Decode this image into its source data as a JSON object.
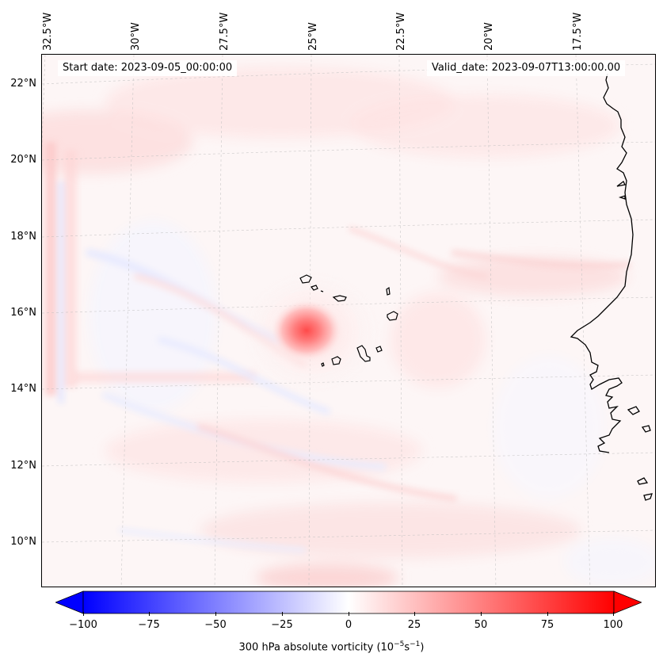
{
  "map": {
    "start_date_text": "Start date: 2023-09-05_00:00:00",
    "valid_date_text": "Valid_date: 2023-09-07T13:00:00.00",
    "longitude_labels": [
      "32.5°W",
      "30°W",
      "27.5°W",
      "25°W",
      "22.5°W",
      "20°W",
      "17.5°W"
    ],
    "latitude_labels": [
      "22°N",
      "20°N",
      "18°N",
      "16°N",
      "14°N",
      "12°N",
      "10°N"
    ],
    "vortex_center": {
      "lon": "25°W",
      "lat": "15.5°N"
    },
    "colormap": "bwr",
    "coastline_color": "#000000"
  },
  "colorbar": {
    "tick_labels": [
      "−100",
      "−75",
      "−50",
      "−25",
      "0",
      "25",
      "50",
      "75",
      "100"
    ],
    "tick_values": [
      -100,
      -75,
      -50,
      -25,
      0,
      25,
      50,
      75,
      100
    ],
    "vmin": -100,
    "vmax": 100,
    "label": "300 hPa absolute vorticity (10",
    "label_exp1": "−5",
    "label_mid": "s",
    "label_exp2": "−1",
    "label_end": ")"
  }
}
